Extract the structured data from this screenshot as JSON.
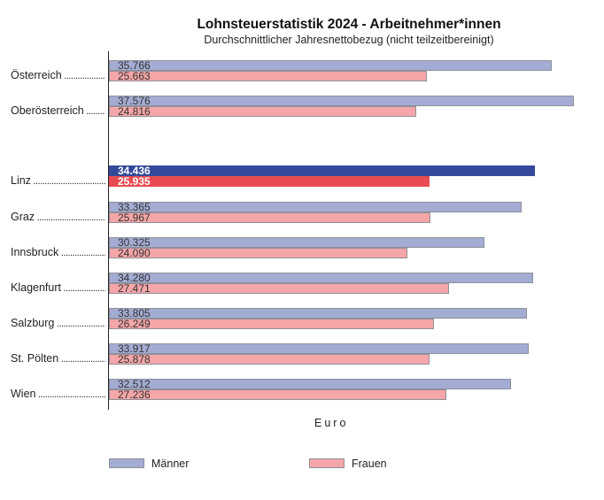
{
  "chart_data": {
    "type": "bar",
    "orientation": "horizontal",
    "title": "Lohnsteuerstatistik 2024 - Arbeitnehmer*innen",
    "subtitle": "Durchschnittlicher Jahresnettobezug (nicht teilzeitbereinigt)",
    "xlabel": "Euro",
    "xlim": [
      0,
      37576
    ],
    "grid": false,
    "legend_placement": "bottom",
    "categories": [
      "Österreich",
      "Oberösterreich",
      "Linz",
      "Graz",
      "Innsbruck",
      "Klagenfurt",
      "Salzburg",
      "St. Pölten",
      "Wien"
    ],
    "highlight_category": "Linz",
    "series": [
      {
        "name": "Männer",
        "color": "#a3acd3",
        "highlight_color": "#34499a",
        "values": [
          35766,
          37576,
          34436,
          33365,
          30325,
          34280,
          33805,
          33917,
          32512
        ],
        "labels": [
          "35.766",
          "37.576",
          "34.436",
          "33.365",
          "30.325",
          "34.280",
          "33.805",
          "33.917",
          "32.512"
        ]
      },
      {
        "name": "Frauen",
        "color": "#f5a6a8",
        "highlight_color": "#e84c52",
        "values": [
          25663,
          24816,
          25935,
          25967,
          24090,
          27471,
          26249,
          25878,
          27236
        ],
        "labels": [
          "25.663",
          "24.816",
          "25.935",
          "25.967",
          "24.090",
          "27.471",
          "26.249",
          "25.878",
          "27.236"
        ]
      }
    ]
  }
}
